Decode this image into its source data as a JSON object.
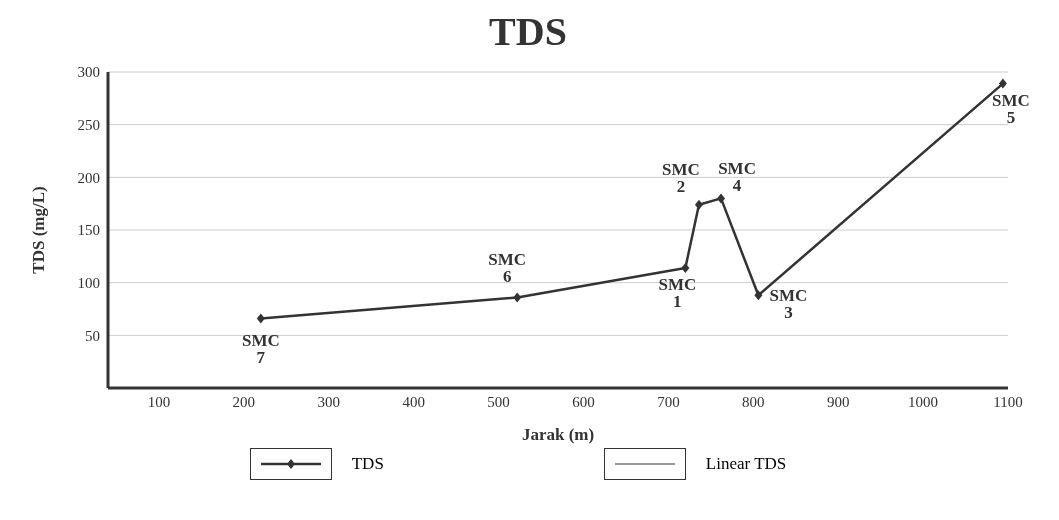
{
  "chart_data": {
    "type": "line",
    "title": "TDS",
    "xlabel": "Jarak (m)",
    "ylabel": "TDS (mg/L)",
    "x": [
      220,
      522,
      720,
      736,
      762,
      806,
      1094
    ],
    "series": [
      {
        "name": "TDS",
        "color": "#333333",
        "values": [
          66,
          86,
          114,
          174,
          180,
          88,
          289
        ]
      },
      {
        "name": "Linear TDS",
        "color": "#333333",
        "values": [
          null,
          null,
          null,
          null,
          null,
          null,
          null
        ]
      }
    ],
    "xlim": [
      40,
      1100
    ],
    "xticks": [
      100,
      200,
      300,
      400,
      500,
      600,
      700,
      800,
      900,
      1000,
      1100
    ],
    "ylim": [
      0,
      300
    ],
    "yticks": [
      50,
      100,
      150,
      200,
      250,
      300
    ],
    "grid": "y",
    "legend": "bottom",
    "marker": "diamond",
    "line_style": "solid",
    "annotations": [
      {
        "text": "SMC 7",
        "x": 220,
        "y": 66
      },
      {
        "text": "SMC 6",
        "x": 522,
        "y": 86
      },
      {
        "text": "SMC 1",
        "x": 720,
        "y": 114
      },
      {
        "text": "SMC 2",
        "x": 736,
        "y": 174
      },
      {
        "text": "SMC 4",
        "x": 762,
        "y": 180
      },
      {
        "text": "SMC 3",
        "x": 806,
        "y": 88
      },
      {
        "text": "SMC 5",
        "x": 1094,
        "y": 289
      }
    ]
  }
}
